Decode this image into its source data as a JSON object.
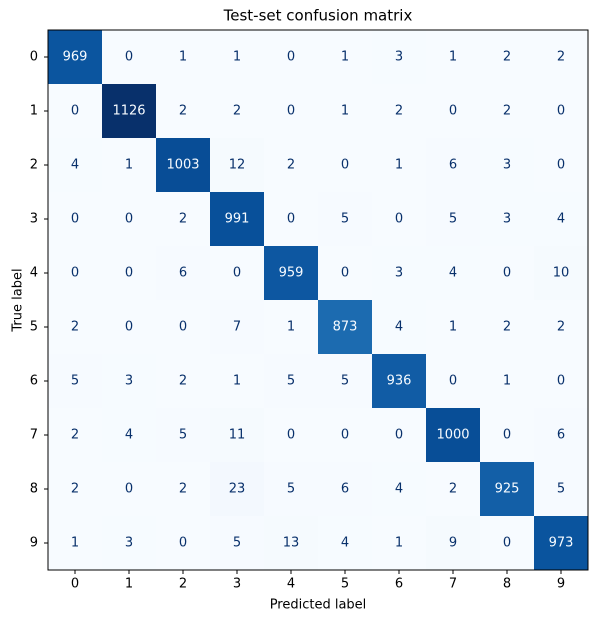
{
  "chart_data": {
    "type": "heatmap",
    "title": "Test-set confusion matrix",
    "xlabel": "Predicted label",
    "ylabel": "True label",
    "xticks": [
      0,
      1,
      2,
      3,
      4,
      5,
      6,
      7,
      8,
      9
    ],
    "yticks": [
      0,
      1,
      2,
      3,
      4,
      5,
      6,
      7,
      8,
      9
    ],
    "values": [
      [
        969,
        0,
        1,
        1,
        0,
        1,
        3,
        1,
        2,
        2
      ],
      [
        0,
        1126,
        2,
        2,
        0,
        1,
        2,
        0,
        2,
        0
      ],
      [
        4,
        1,
        1003,
        12,
        2,
        0,
        1,
        6,
        3,
        0
      ],
      [
        0,
        0,
        2,
        991,
        0,
        5,
        0,
        5,
        3,
        4
      ],
      [
        0,
        0,
        6,
        0,
        959,
        0,
        3,
        4,
        0,
        10
      ],
      [
        2,
        0,
        0,
        7,
        1,
        873,
        4,
        1,
        2,
        2
      ],
      [
        5,
        3,
        2,
        1,
        5,
        5,
        936,
        0,
        1,
        0
      ],
      [
        2,
        4,
        5,
        11,
        0,
        0,
        0,
        1000,
        0,
        6
      ],
      [
        2,
        0,
        2,
        23,
        5,
        6,
        4,
        2,
        925,
        5
      ],
      [
        1,
        3,
        0,
        5,
        13,
        4,
        1,
        9,
        0,
        973
      ]
    ],
    "colormap": [
      "#f7fbff",
      "#deebf7",
      "#c6dbef",
      "#9ecae1",
      "#6baed6",
      "#4292c6",
      "#2171b5",
      "#08519c",
      "#08306b"
    ]
  }
}
